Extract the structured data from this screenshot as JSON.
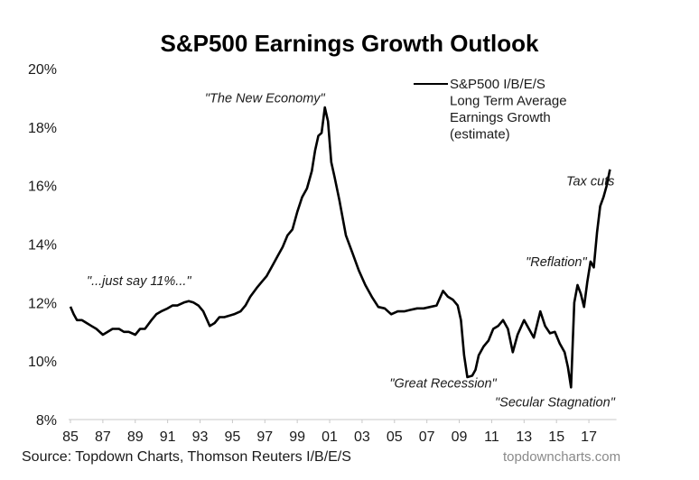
{
  "chart_data": {
    "type": "line",
    "title": "S&P500 Earnings Growth Outlook",
    "xlabel": "",
    "ylabel": "",
    "ylim": [
      8,
      20
    ],
    "xlim": [
      1985,
      2018.7
    ],
    "y_ticks": [
      "8%",
      "10%",
      "12%",
      "14%",
      "16%",
      "18%",
      "20%"
    ],
    "y_tick_values": [
      8,
      10,
      12,
      14,
      16,
      18,
      20
    ],
    "x_ticks": [
      "85",
      "87",
      "89",
      "91",
      "93",
      "95",
      "97",
      "99",
      "01",
      "03",
      "05",
      "07",
      "09",
      "11",
      "13",
      "15",
      "17"
    ],
    "x_tick_values": [
      1985,
      1987,
      1989,
      1991,
      1993,
      1995,
      1997,
      1999,
      2001,
      2003,
      2005,
      2007,
      2009,
      2011,
      2013,
      2015,
      2017
    ],
    "grid": false,
    "legend": {
      "placement": "top-right",
      "entries": [
        "S&P500 I/B/E/S",
        "Long Term Average",
        "Earnings Growth",
        "(estimate)"
      ]
    },
    "series": [
      {
        "name": "S&P500 I/B/E/S Long Term Average Earnings Growth (estimate)",
        "color": "#000000",
        "x": [
          1985.0,
          1985.2,
          1985.4,
          1985.7,
          1986.0,
          1986.3,
          1986.6,
          1987.0,
          1987.3,
          1987.6,
          1988.0,
          1988.3,
          1988.6,
          1989.0,
          1989.3,
          1989.6,
          1990.0,
          1990.3,
          1990.6,
          1991.0,
          1991.3,
          1991.6,
          1992.0,
          1992.3,
          1992.6,
          1992.9,
          1993.2,
          1993.6,
          1993.9,
          1994.2,
          1994.5,
          1994.8,
          1995.1,
          1995.5,
          1995.8,
          1996.1,
          1996.5,
          1996.8,
          1997.1,
          1997.5,
          1997.8,
          1998.1,
          1998.4,
          1998.7,
          1999.0,
          1999.3,
          1999.6,
          1999.9,
          2000.1,
          2000.3,
          2000.5,
          2000.7,
          2000.9,
          2001.1,
          2001.3,
          2001.6,
          2002.0,
          2002.4,
          2002.8,
          2003.2,
          2003.6,
          2004.0,
          2004.4,
          2004.8,
          2005.2,
          2005.6,
          2006.0,
          2006.4,
          2006.8,
          2007.2,
          2007.6,
          2008.0,
          2008.3,
          2008.6,
          2008.9,
          2009.1,
          2009.3,
          2009.5,
          2009.8,
          2010.0,
          2010.2,
          2010.5,
          2010.8,
          2011.1,
          2011.4,
          2011.7,
          2012.0,
          2012.3,
          2012.6,
          2013.0,
          2013.3,
          2013.6,
          2014.0,
          2014.3,
          2014.6,
          2014.9,
          2015.2,
          2015.5,
          2015.7,
          2015.9,
          2016.1,
          2016.3,
          2016.5,
          2016.7,
          2016.9,
          2017.1,
          2017.3,
          2017.5,
          2017.7,
          2017.9,
          2018.1,
          2018.3
        ],
        "values": [
          11.86,
          11.6,
          11.4,
          11.4,
          11.3,
          11.2,
          11.1,
          10.9,
          11.0,
          11.1,
          11.1,
          11.0,
          11.0,
          10.9,
          11.1,
          11.1,
          11.4,
          11.6,
          11.7,
          11.8,
          11.9,
          11.9,
          12.0,
          12.05,
          12.0,
          11.9,
          11.7,
          11.2,
          11.3,
          11.5,
          11.5,
          11.55,
          11.6,
          11.7,
          11.9,
          12.2,
          12.5,
          12.7,
          12.9,
          13.3,
          13.6,
          13.9,
          14.3,
          14.5,
          15.1,
          15.6,
          15.9,
          16.5,
          17.2,
          17.7,
          17.8,
          18.67,
          18.2,
          16.8,
          16.3,
          15.5,
          14.3,
          13.7,
          13.1,
          12.6,
          12.2,
          11.85,
          11.8,
          11.6,
          11.7,
          11.7,
          11.75,
          11.8,
          11.8,
          11.85,
          11.9,
          12.4,
          12.2,
          12.1,
          11.9,
          11.4,
          10.2,
          9.45,
          9.5,
          9.7,
          10.2,
          10.5,
          10.7,
          11.1,
          11.2,
          11.4,
          11.1,
          10.3,
          10.9,
          11.4,
          11.1,
          10.8,
          11.7,
          11.2,
          10.95,
          11.0,
          10.6,
          10.3,
          9.8,
          9.1,
          12.0,
          12.6,
          12.3,
          11.85,
          12.7,
          13.4,
          13.2,
          14.4,
          15.3,
          15.6,
          16.0,
          16.55
        ]
      }
    ],
    "annotations": [
      {
        "text": "\"The New Economy\"",
        "x": 1993.3,
        "y": 18.85
      },
      {
        "text": "\"...just say 11%...\"",
        "x": 1986.0,
        "y": 12.6
      },
      {
        "text": "\"Great Recession\"",
        "x": 2004.7,
        "y": 9.1
      },
      {
        "text": "\"Secular Stagnation\"",
        "x": 2011.2,
        "y": 8.45
      },
      {
        "text": "\"Reflation\"",
        "x": 2013.1,
        "y": 13.25
      },
      {
        "text": "Tax cuts",
        "x": 2015.6,
        "y": 16.0
      }
    ]
  },
  "footer": {
    "source": "Source: Topdown Charts, Thomson Reuters I/B/E/S",
    "watermark": "topdowncharts.com"
  }
}
